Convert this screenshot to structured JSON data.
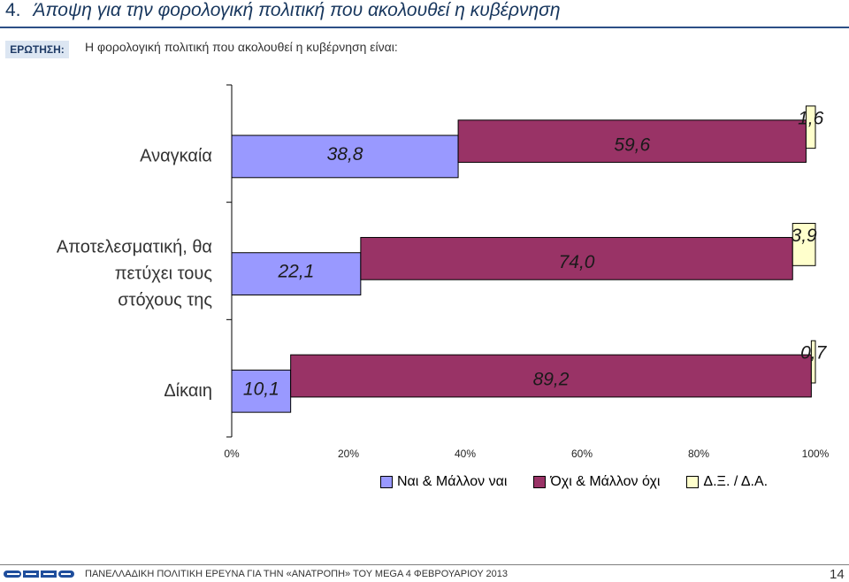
{
  "header": {
    "number": "4.",
    "title": "Άποψη για την φορολογική πολιτική που ακολουθεί η κυβέρνηση",
    "question_label": "ΕΡΩΤΗΣΗ:",
    "question_text": "Η φορολογική πολιτική που ακολουθεί η κυβέρνηση είναι:"
  },
  "chart_data": {
    "type": "bar",
    "orientation": "horizontal",
    "stacked": true,
    "percent_stacked": true,
    "categories": [
      "Αναγκαία",
      "Αποτελεσματική, θα πετύχει τους στόχους της",
      "Δίκαιη"
    ],
    "category_lines": [
      [
        "Αναγκαία"
      ],
      [
        "Αποτελεσματική, θα",
        "πετύχει τους",
        "στόχους της"
      ],
      [
        "Δίκαιη"
      ]
    ],
    "series": [
      {
        "name": "Ναι & Μάλλον ναι",
        "values": [
          38.8,
          22.1,
          10.1
        ],
        "labels": [
          "38,8",
          "22,1",
          "10,1"
        ],
        "color": "#9999ff"
      },
      {
        "name": "Όχι & Μάλλον όχι",
        "values": [
          59.6,
          74.0,
          89.2
        ],
        "labels": [
          "59,6",
          "74,0",
          "89,2"
        ],
        "color": "#993366"
      },
      {
        "name": "Δ.Ξ. / Δ.Α.",
        "values": [
          1.6,
          3.9,
          0.7
        ],
        "labels": [
          "1,6",
          "3,9",
          "0,7"
        ],
        "color": "#ffffcc"
      }
    ],
    "x_ticks": [
      "0%",
      "20%",
      "40%",
      "60%",
      "80%",
      "100%"
    ],
    "xlim": [
      0,
      100
    ],
    "grid": false,
    "legend_position": "bottom-right"
  },
  "footer": {
    "logo_text": "GPO",
    "text": "ΠΑΝΕΛΛΑΔΙΚΗ ΠΟΛΙΤΙΚΗ ΕΡΕΥΝΑ ΓΙΑ ΤΗΝ «ΑΝΑΤΡΟΠΗ» ΤΟΥ MEGA  4  ΦΕΒΡΟΥΑΡΙΟΥ  2013",
    "page": "14"
  }
}
